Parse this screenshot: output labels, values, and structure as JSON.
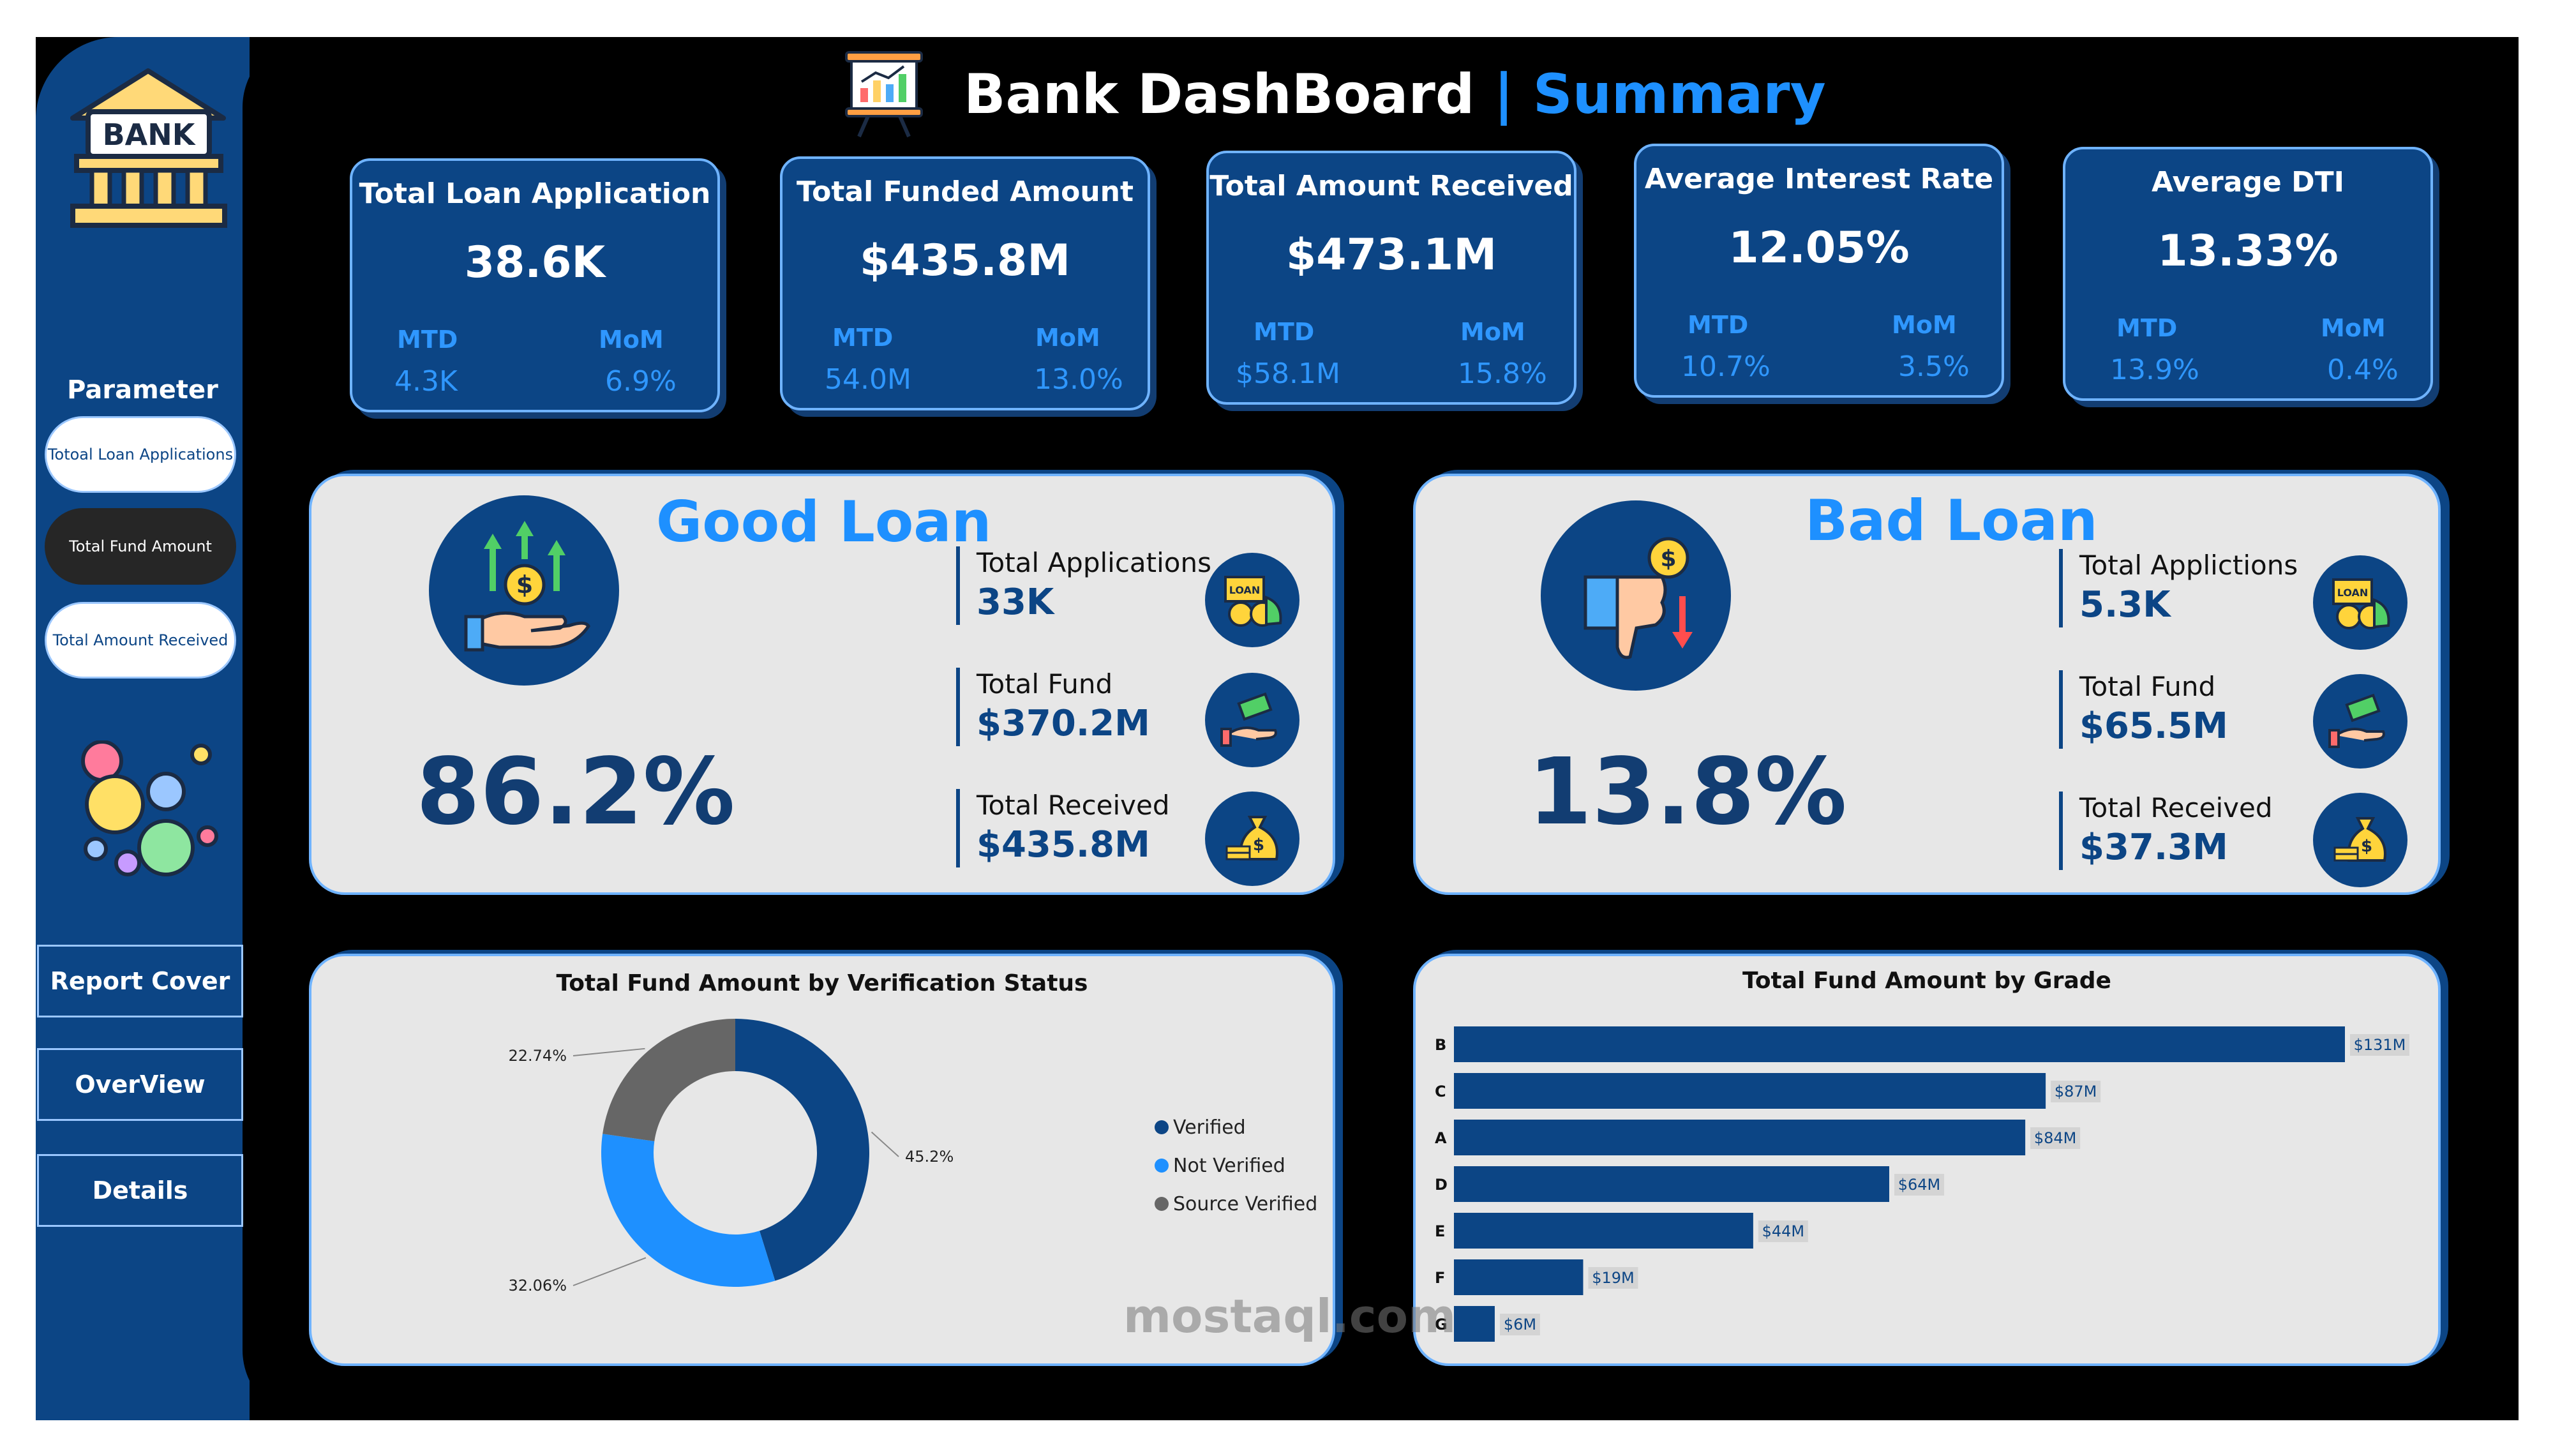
{
  "header": {
    "title": "Bank DashBoard",
    "separator": "|",
    "accent": "Summary"
  },
  "sidebar": {
    "logo_text": "BANK",
    "parameter_label": "Parameter",
    "parameters": [
      "Totoal Loan Applications",
      "Total Fund Amount",
      "Total Amount Received"
    ],
    "nav": [
      "Report Cover",
      "OverView",
      "Details"
    ]
  },
  "kpis": [
    {
      "title": "Total Loan Application",
      "value": "38.6K",
      "mtd_label": "MTD",
      "mom_label": "MoM",
      "mtd": "4.3K",
      "mom": "6.9%"
    },
    {
      "title": "Total Funded Amount",
      "value": "$435.8M",
      "mtd_label": "MTD",
      "mom_label": "MoM",
      "mtd": "54.0M",
      "mom": "13.0%"
    },
    {
      "title": "Total Amount Received",
      "value": "$473.1M",
      "mtd_label": "MTD",
      "mom_label": "MoM",
      "mtd": "$58.1M",
      "mom": "15.8%"
    },
    {
      "title": "Average Interest Rate",
      "value": "12.05%",
      "mtd_label": "MTD",
      "mom_label": "MoM",
      "mtd": "10.7%",
      "mom": "3.5%"
    },
    {
      "title": "Average DTI",
      "value": "13.33%",
      "mtd_label": "MTD",
      "mom_label": "MoM",
      "mtd": "13.9%",
      "mom": "0.4%"
    }
  ],
  "good_loan": {
    "title": "Good Loan",
    "percent": "86.2%",
    "stats": [
      {
        "label": "Total Applications",
        "value": "33K"
      },
      {
        "label": "Total Fund",
        "value": "$370.2M"
      },
      {
        "label": "Total Received",
        "value": "$435.8M"
      }
    ]
  },
  "bad_loan": {
    "title": "Bad Loan",
    "percent": "13.8%",
    "stats": [
      {
        "label": "Total Applictions",
        "value": "5.3K"
      },
      {
        "label": "Total Fund",
        "value": "$65.5M"
      },
      {
        "label": "Total Received",
        "value": "$37.3M"
      }
    ]
  },
  "chart_data": [
    {
      "type": "pie",
      "title": "Total Fund Amount by Verification Status",
      "categories": [
        "Verified",
        "Not Verified",
        "Source Verified"
      ],
      "values": [
        45.2,
        32.06,
        22.74
      ],
      "labels": [
        "45.2%",
        "32.06%",
        "22.74%"
      ],
      "colors": [
        "#0c4585",
        "#1e90ff",
        "#666666"
      ],
      "legend": "right"
    },
    {
      "type": "bar",
      "orientation": "horizontal",
      "title": "Total Fund Amount by Grade",
      "categories": [
        "B",
        "C",
        "A",
        "D",
        "E",
        "F",
        "G"
      ],
      "values": [
        131,
        87,
        84,
        64,
        44,
        19,
        6
      ],
      "labels": [
        "$131M",
        "$87M",
        "$84M",
        "$64M",
        "$44M",
        "$19M",
        "$6M"
      ],
      "unit": "$M",
      "color": "#0c4585"
    }
  ],
  "watermark": "mostaql.com"
}
